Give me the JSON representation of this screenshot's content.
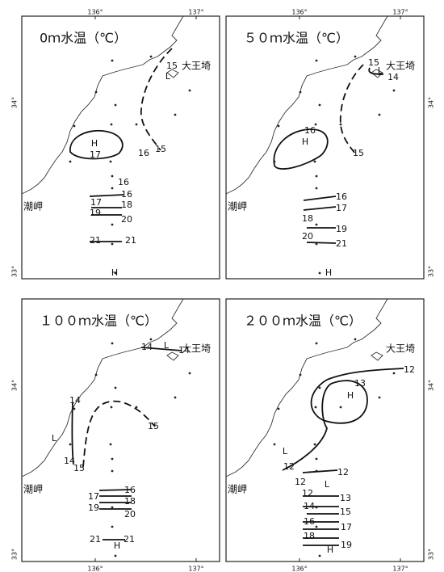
{
  "panels": [
    {
      "title": "0ｍ水温（℃）",
      "lon_labels": [
        "136°",
        "137°"
      ],
      "lat_labels": [
        "34°",
        "33°"
      ],
      "places": [
        "大王埼",
        "潮岬"
      ],
      "labels": [
        "15",
        "L",
        "H",
        "17",
        "16",
        "15",
        "16",
        "16",
        "17",
        "18",
        "19",
        "20",
        "21",
        "21",
        "H"
      ]
    },
    {
      "title": "５０ｍ水温（℃）",
      "lon_labels": [
        "136°",
        "137°"
      ],
      "lat_labels": [
        "34°",
        "33°"
      ],
      "places": [
        "大王埼",
        "潮岬"
      ],
      "labels": [
        "15",
        "L",
        "14",
        "16",
        "H",
        "15",
        "16",
        "17",
        "18",
        "19",
        "20",
        "21",
        "H"
      ]
    },
    {
      "title": "１００ｍ水温（℃）",
      "lon_labels": [
        "136°",
        "137°"
      ],
      "lat_labels": [
        "34°",
        "33°"
      ],
      "places": [
        "大王埼",
        "潮岬"
      ],
      "labels": [
        "14",
        "L",
        "14",
        "14",
        "15",
        "L",
        "14",
        "15",
        "16",
        "17",
        "18",
        "19",
        "20",
        "21",
        "21",
        "H"
      ]
    },
    {
      "title": "２００ｍ水温（℃）",
      "lon_labels": [
        "136°",
        "137°"
      ],
      "lat_labels": [
        "34°",
        "33°"
      ],
      "places": [
        "大王埼",
        "潮岬"
      ],
      "labels": [
        "12",
        "13",
        "H",
        "L",
        "12",
        "12",
        "12",
        "L",
        "12",
        "13",
        "14",
        "15",
        "16",
        "17",
        "18",
        "19",
        "H"
      ]
    }
  ]
}
